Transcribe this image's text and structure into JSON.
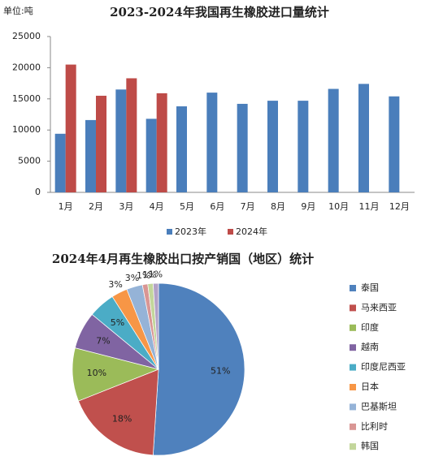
{
  "chart_data": [
    {
      "type": "bar",
      "title": "2023-2024年我国再生橡胶进口量统计",
      "unit": "单位:吨",
      "categories": [
        "1月",
        "2月",
        "3月",
        "4月",
        "5月",
        "6月",
        "7月",
        "8月",
        "9月",
        "10月",
        "11月",
        "12月"
      ],
      "series": [
        {
          "name": "2023年",
          "color": "#4a7ebb",
          "values": [
            9400,
            11600,
            16500,
            11800,
            13800,
            16000,
            14200,
            14700,
            14700,
            16600,
            17400,
            15400
          ]
        },
        {
          "name": "2024年",
          "color": "#be4b48",
          "values": [
            20500,
            15500,
            18300,
            15900,
            null,
            null,
            null,
            null,
            null,
            null,
            null,
            null
          ]
        }
      ],
      "ylim": [
        0,
        25000
      ],
      "yticks": [
        0,
        5000,
        10000,
        15000,
        20000,
        25000
      ],
      "legend": "bottom"
    },
    {
      "type": "pie",
      "title": "2024年4月再生橡胶出口按产销国（地区）统计",
      "categories": [
        "泰国",
        "马来西亚",
        "印度",
        "越南",
        "印度尼西亚",
        "日本",
        "巴基斯坦",
        "比利时",
        "韩国",
        null
      ],
      "values": [
        51,
        18,
        10,
        7,
        5,
        3,
        3,
        1,
        1,
        1
      ],
      "value_labels": [
        "51%",
        "18%",
        "10%",
        "7%",
        "5%",
        "3%",
        "3%",
        "1%",
        "1%",
        "1%"
      ],
      "colors": [
        "#4f81bd",
        "#c0504d",
        "#9bbb59",
        "#8064a2",
        "#4bacc6",
        "#f79646",
        "#95b3d7",
        "#d99694",
        "#c3d69b",
        "#b3a2c7"
      ],
      "legend": "right"
    }
  ]
}
